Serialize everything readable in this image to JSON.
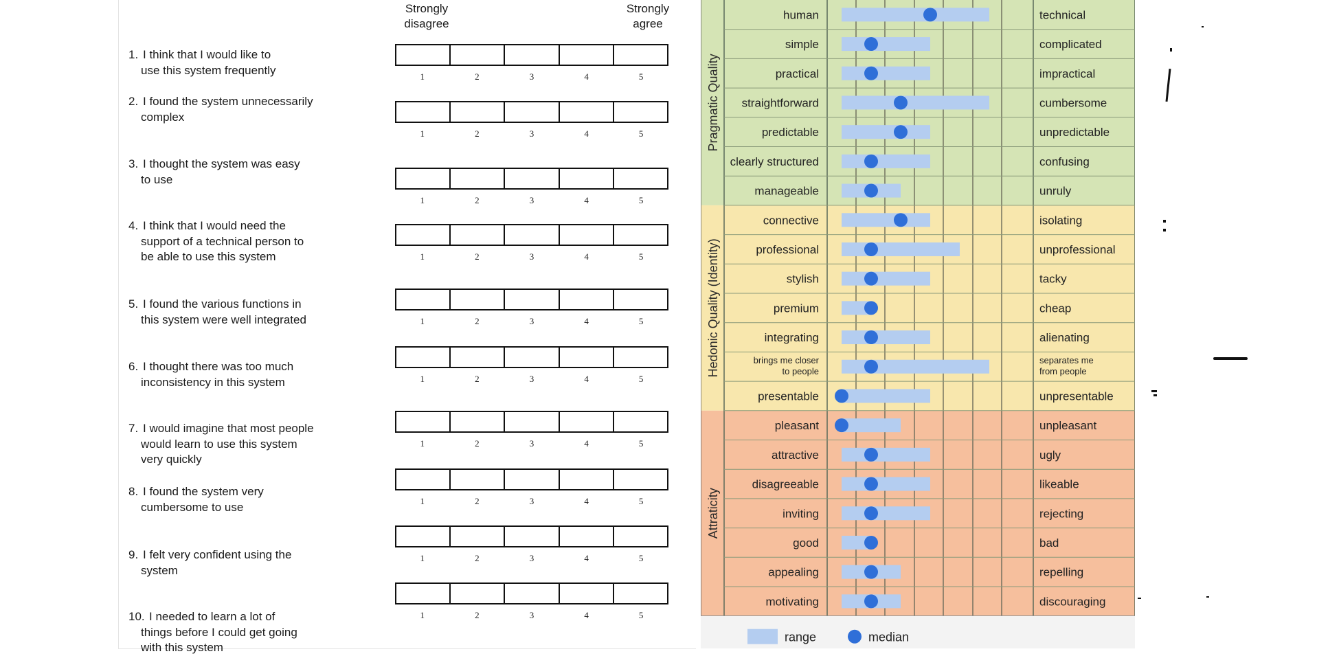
{
  "sus": {
    "header": {
      "left": "Strongly\ndisagree",
      "right": "Strongly\nagree"
    },
    "scale_numbers": [
      "1",
      "2",
      "3",
      "4",
      "5"
    ],
    "questions": [
      {
        "num": "1.",
        "lines": [
          "I think that I would like to",
          "use this system frequently"
        ]
      },
      {
        "num": "2.",
        "lines": [
          "I found the system unnecessarily",
          "complex"
        ]
      },
      {
        "num": "3.",
        "lines": [
          "I thought the system was easy",
          "to use"
        ]
      },
      {
        "num": "4.",
        "lines": [
          "I think that I would need the",
          "support of a technical person to",
          "be able to use this system"
        ]
      },
      {
        "num": "5.",
        "lines": [
          "I found the various functions in",
          "this system were well integrated"
        ]
      },
      {
        "num": "6.",
        "lines": [
          "I thought there was too much",
          "inconsistency in this system"
        ]
      },
      {
        "num": "7.",
        "lines": [
          "I would imagine that most people",
          "would learn to use this system",
          "very quickly"
        ]
      },
      {
        "num": "8.",
        "lines": [
          "I found the system very",
          "cumbersome to use"
        ]
      },
      {
        "num": "9.",
        "lines": [
          "I felt very confident using the",
          "system"
        ]
      },
      {
        "num": "10.",
        "lines": [
          "I needed to learn a lot of",
          "things before I could get going",
          "with this system"
        ]
      }
    ]
  },
  "chart_data": {
    "type": "range-median",
    "scale": [
      -3,
      3
    ],
    "groups": [
      {
        "name": "Pragmatic Quality",
        "color": "#d5e4b5",
        "rows": [
          0,
          6
        ]
      },
      {
        "name": "Hedonic Quality (Identity)",
        "color": "#f8e7ad",
        "rows": [
          7,
          13
        ]
      },
      {
        "name": "Attraticity",
        "color": "#f6bf9d",
        "rows": [
          14,
          20
        ]
      }
    ],
    "items": [
      {
        "left": "human",
        "right": "technical",
        "range": [
          -3,
          2
        ],
        "median": 0
      },
      {
        "left": "simple",
        "right": "complicated",
        "range": [
          -3,
          0
        ],
        "median": -2
      },
      {
        "left": "practical",
        "right": "impractical",
        "range": [
          -3,
          0
        ],
        "median": -2
      },
      {
        "left": "straightforward",
        "right": "cumbersome",
        "range": [
          -3,
          2
        ],
        "median": -1
      },
      {
        "left": "predictable",
        "right": "unpredictable",
        "range": [
          -3,
          0
        ],
        "median": -1
      },
      {
        "left": "clearly structured",
        "right": "confusing",
        "range": [
          -3,
          0
        ],
        "median": -2
      },
      {
        "left": "manageable",
        "right": "unruly",
        "range": [
          -3,
          -1
        ],
        "median": -2
      },
      {
        "left": "connective",
        "right": "isolating",
        "range": [
          -3,
          0
        ],
        "median": -1
      },
      {
        "left": "professional",
        "right": "unprofessional",
        "range": [
          -3,
          1
        ],
        "median": -2
      },
      {
        "left": "stylish",
        "right": "tacky",
        "range": [
          -3,
          0
        ],
        "median": -2
      },
      {
        "left": "premium",
        "right": "cheap",
        "range": [
          -3,
          -2
        ],
        "median": -2
      },
      {
        "left": "integrating",
        "right": "alienating",
        "range": [
          -3,
          0
        ],
        "median": -2
      },
      {
        "left": "brings me closer\nto people",
        "right": "separates me\nfrom people",
        "range": [
          -3,
          2
        ],
        "median": -2,
        "small": true
      },
      {
        "left": "presentable",
        "right": "unpresentable",
        "range": [
          -3,
          0
        ],
        "median": -3
      },
      {
        "left": "pleasant",
        "right": "unpleasant",
        "range": [
          -3,
          -1
        ],
        "median": -3
      },
      {
        "left": "attractive",
        "right": "ugly",
        "range": [
          -3,
          0
        ],
        "median": -2
      },
      {
        "left": "disagreeable",
        "right": "likeable",
        "range": [
          -3,
          0
        ],
        "median": -2
      },
      {
        "left": "inviting",
        "right": "rejecting",
        "range": [
          -3,
          0
        ],
        "median": -2
      },
      {
        "left": "good",
        "right": "bad",
        "range": [
          -3,
          -2
        ],
        "median": -2
      },
      {
        "left": "appealing",
        "right": "repelling",
        "range": [
          -3,
          -1
        ],
        "median": -2
      },
      {
        "left": "motivating",
        "right": "discouraging",
        "range": [
          -3,
          -1
        ],
        "median": -2
      }
    ],
    "legend": {
      "range_label": "range",
      "median_label": "median",
      "range_color": "#b4cdf0",
      "median_color": "#2f6fd8"
    }
  }
}
